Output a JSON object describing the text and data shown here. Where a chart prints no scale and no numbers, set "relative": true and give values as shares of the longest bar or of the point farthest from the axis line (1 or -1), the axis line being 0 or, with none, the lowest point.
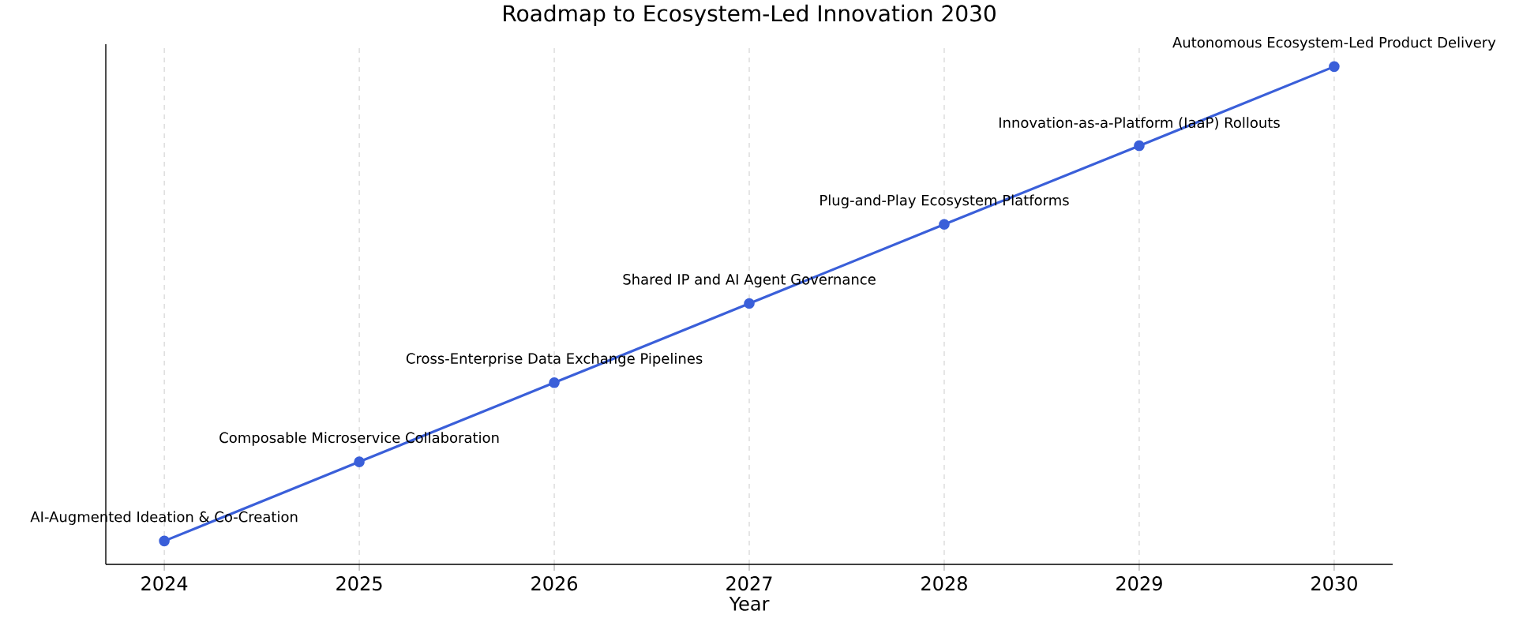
{
  "chart_data": {
    "type": "line",
    "title": "Roadmap to Ecosystem-Led Innovation 2030",
    "xlabel": "Year",
    "relative": true,
    "x": [
      2024,
      2025,
      2026,
      2027,
      2028,
      2029,
      2030
    ],
    "values": [
      0.047,
      0.206,
      0.365,
      0.524,
      0.683,
      0.841,
      1
    ],
    "color": "#3a5fd9",
    "marker": "circle",
    "line_style": "solid",
    "grid": "x",
    "xlim": [
      2023.7,
      2030.3
    ],
    "xticks": [
      2024,
      2025,
      2026,
      2027,
      2028,
      2029,
      2030
    ],
    "annotations": [
      {
        "text": "AI-Augmented Ideation & Co-Creation",
        "x": 2024,
        "y": 0.047
      },
      {
        "text": "Composable Microservice Collaboration",
        "x": 2025,
        "y": 0.206
      },
      {
        "text": "Cross-Enterprise Data Exchange Pipelines",
        "x": 2026,
        "y": 0.365
      },
      {
        "text": "Shared IP and AI Agent Governance",
        "x": 2027,
        "y": 0.524
      },
      {
        "text": "Plug-and-Play Ecosystem Platforms",
        "x": 2028,
        "y": 0.683
      },
      {
        "text": "Innovation-as-a-Platform (IaaP) Rollouts",
        "x": 2029,
        "y": 0.841
      },
      {
        "text": "Autonomous Ecosystem-Led Product Delivery",
        "x": 2030,
        "y": 1
      }
    ]
  }
}
